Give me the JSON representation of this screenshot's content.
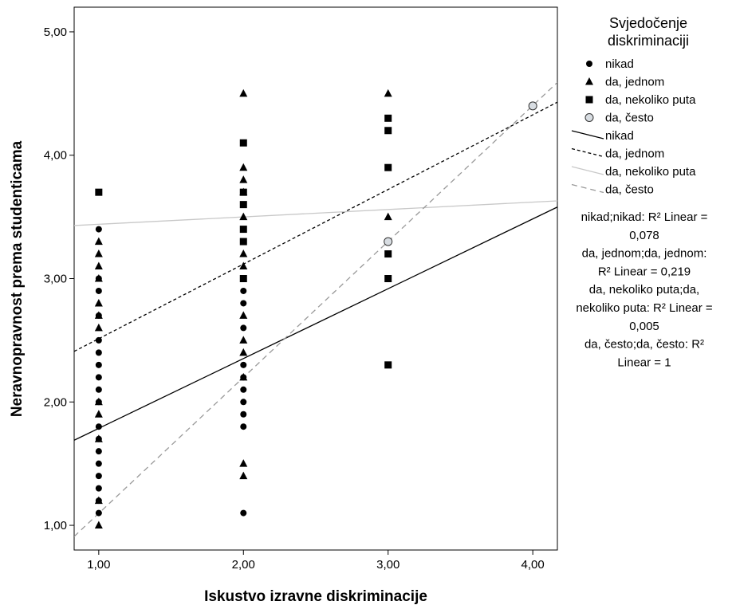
{
  "chart_data": {
    "type": "scatter",
    "title": "",
    "xlabel": "Iskustvo izravne diskriminacije",
    "ylabel": "Neravnopravnost prema studenticama",
    "xlim": [
      0.83,
      4.17
    ],
    "ylim": [
      0.8,
      5.2
    ],
    "x_ticks": [
      "1,00",
      "2,00",
      "3,00",
      "4,00"
    ],
    "y_ticks": [
      "1,00",
      "2,00",
      "3,00",
      "4,00",
      "5,00"
    ],
    "legend_title": [
      "Svjedočenje",
      "diskriminaciji"
    ],
    "legend_placement": "right",
    "series": [
      {
        "name": "nikad",
        "marker": "circle",
        "color": "#000000",
        "points": [
          [
            1,
            1.1
          ],
          [
            1,
            1.2
          ],
          [
            1,
            1.3
          ],
          [
            1,
            1.4
          ],
          [
            1,
            1.5
          ],
          [
            1,
            1.6
          ],
          [
            1,
            1.7
          ],
          [
            1,
            1.8
          ],
          [
            1,
            2.0
          ],
          [
            1,
            2.1
          ],
          [
            1,
            2.2
          ],
          [
            1,
            2.3
          ],
          [
            1,
            2.4
          ],
          [
            1,
            2.5
          ],
          [
            1,
            2.7
          ],
          [
            1,
            2.9
          ],
          [
            1,
            3.0
          ],
          [
            1,
            3.4
          ],
          [
            2,
            1.1
          ],
          [
            2,
            1.8
          ],
          [
            2,
            1.9
          ],
          [
            2,
            2.0
          ],
          [
            2,
            2.1
          ],
          [
            2,
            2.2
          ],
          [
            2,
            2.3
          ],
          [
            2,
            2.6
          ],
          [
            2,
            2.8
          ],
          [
            2,
            2.9
          ]
        ]
      },
      {
        "name": "da, jednom",
        "marker": "triangle",
        "color": "#000000",
        "points": [
          [
            1,
            1.0
          ],
          [
            1,
            1.2
          ],
          [
            1,
            1.7
          ],
          [
            1,
            1.9
          ],
          [
            1,
            2.0
          ],
          [
            1,
            2.6
          ],
          [
            1,
            2.7
          ],
          [
            1,
            2.8
          ],
          [
            1,
            3.0
          ],
          [
            1,
            3.1
          ],
          [
            1,
            3.2
          ],
          [
            1,
            3.3
          ],
          [
            2,
            1.4
          ],
          [
            2,
            1.5
          ],
          [
            2,
            2.2
          ],
          [
            2,
            2.4
          ],
          [
            2,
            2.5
          ],
          [
            2,
            2.7
          ],
          [
            2,
            3.1
          ],
          [
            2,
            3.2
          ],
          [
            2,
            3.5
          ],
          [
            2,
            3.7
          ],
          [
            2,
            3.8
          ],
          [
            2,
            3.9
          ],
          [
            2,
            4.5
          ],
          [
            3,
            3.5
          ],
          [
            3,
            4.5
          ]
        ]
      },
      {
        "name": "da, nekoliko puta",
        "marker": "square",
        "color": "#000000",
        "points": [
          [
            1,
            3.7
          ],
          [
            2,
            3.0
          ],
          [
            2,
            3.3
          ],
          [
            2,
            3.4
          ],
          [
            2,
            3.6
          ],
          [
            2,
            3.7
          ],
          [
            2,
            4.1
          ],
          [
            3,
            2.3
          ],
          [
            3,
            3.0
          ],
          [
            3,
            3.2
          ],
          [
            3,
            3.9
          ],
          [
            3,
            4.2
          ],
          [
            3,
            4.3
          ]
        ]
      },
      {
        "name": "da, često",
        "marker": "open-circle",
        "color": "#d8dde2",
        "points": [
          [
            3,
            3.3
          ],
          [
            4,
            4.4
          ]
        ]
      }
    ],
    "fit_lines": [
      {
        "name": "nikad",
        "style": "solid",
        "color": "#000000",
        "endpoints": [
          [
            0.83,
            1.69
          ],
          [
            4.17,
            3.58
          ]
        ]
      },
      {
        "name": "da, jednom",
        "style": "dotted",
        "color": "#000000",
        "endpoints": [
          [
            0.83,
            2.41
          ],
          [
            4.17,
            4.43
          ]
        ]
      },
      {
        "name": "da, nekoliko puta",
        "style": "solid",
        "color": "#c8c8c8",
        "endpoints": [
          [
            0.83,
            3.43
          ],
          [
            4.17,
            3.63
          ]
        ]
      },
      {
        "name": "da, često",
        "style": "dashed",
        "color": "#999999",
        "endpoints": [
          [
            0.83,
            0.91
          ],
          [
            4.17,
            4.59
          ]
        ]
      }
    ],
    "r2_annotations": [
      "nikad;nikad: R² Linear =",
      "0,078",
      "da, jednom;da, jednom:",
      "R² Linear = 0,219",
      "da, nekoliko puta;da,",
      "nekoliko puta: R² Linear =",
      "0,005",
      "da, često;da, često: R²",
      "Linear = 1"
    ]
  }
}
